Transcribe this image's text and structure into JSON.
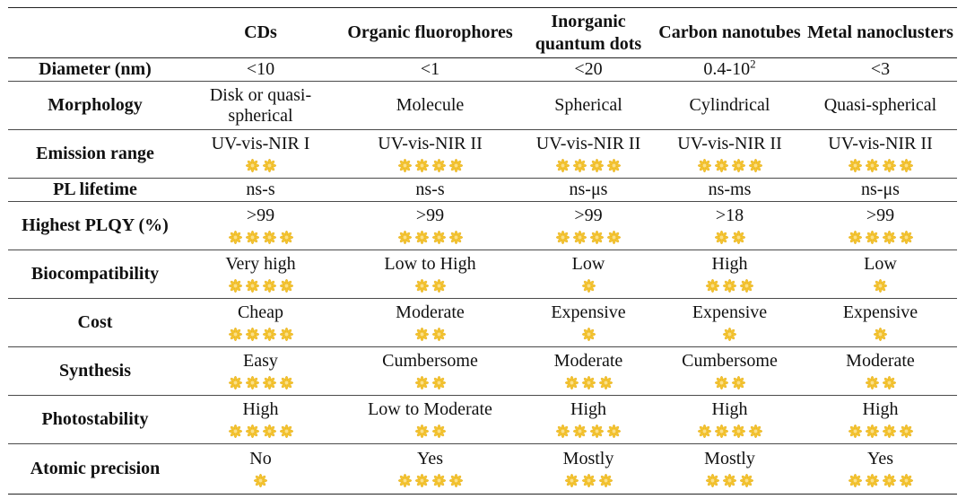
{
  "colors": {
    "star_fill": "#f4c430",
    "star_stroke": "#e0a81c",
    "rule": "#222222"
  },
  "table": {
    "headers": [
      "",
      "CDs",
      "Organic fluorophores",
      "Inorganic quantum dots",
      "Carbon nanotubes",
      "Metal nanoclusters"
    ],
    "rows": [
      {
        "label": "Diameter (nm)",
        "cells": [
          {
            "text": "<10"
          },
          {
            "text": "<1"
          },
          {
            "text": "<20"
          },
          {
            "text": "0.4-10",
            "sup": "2"
          },
          {
            "text": "<3"
          }
        ]
      },
      {
        "label": "Morphology",
        "cells": [
          {
            "text": "Disk or quasi-spherical"
          },
          {
            "text": "Molecule"
          },
          {
            "text": "Spherical"
          },
          {
            "text": "Cylindrical"
          },
          {
            "text": "Quasi-spherical"
          }
        ]
      },
      {
        "label": "Emission range",
        "cells": [
          {
            "text": "UV-vis-NIR I",
            "stars": 2
          },
          {
            "text": "UV-vis-NIR II",
            "stars": 4
          },
          {
            "text": "UV-vis-NIR II",
            "stars": 4
          },
          {
            "text": "UV-vis-NIR II",
            "stars": 4
          },
          {
            "text": "UV-vis-NIR II",
            "stars": 4
          }
        ]
      },
      {
        "label": "PL lifetime",
        "cells": [
          {
            "text": "ns-s"
          },
          {
            "text": "ns-s"
          },
          {
            "text": "ns-μs"
          },
          {
            "text": "ns-ms"
          },
          {
            "text": "ns-μs"
          }
        ]
      },
      {
        "label": "Highest PLQY (%)",
        "cells": [
          {
            "text": ">99",
            "stars": 4
          },
          {
            "text": ">99",
            "stars": 4
          },
          {
            "text": ">99",
            "stars": 4
          },
          {
            "text": ">18",
            "stars": 2
          },
          {
            "text": ">99",
            "stars": 4
          }
        ]
      },
      {
        "label": "Biocompatibility",
        "cells": [
          {
            "text": "Very high",
            "stars": 4
          },
          {
            "text": "Low to High",
            "stars": 2
          },
          {
            "text": "Low",
            "stars": 1
          },
          {
            "text": "High",
            "stars": 3
          },
          {
            "text": "Low",
            "stars": 1
          }
        ]
      },
      {
        "label": "Cost",
        "cells": [
          {
            "text": "Cheap",
            "stars": 4
          },
          {
            "text": "Moderate",
            "stars": 2
          },
          {
            "text": "Expensive",
            "stars": 1
          },
          {
            "text": "Expensive",
            "stars": 1
          },
          {
            "text": "Expensive",
            "stars": 1
          }
        ]
      },
      {
        "label": "Synthesis",
        "cells": [
          {
            "text": "Easy",
            "stars": 4
          },
          {
            "text": "Cumbersome",
            "stars": 2
          },
          {
            "text": "Moderate",
            "stars": 3
          },
          {
            "text": "Cumbersome",
            "stars": 2
          },
          {
            "text": "Moderate",
            "stars": 2
          }
        ]
      },
      {
        "label": "Photostability",
        "cells": [
          {
            "text": "High",
            "stars": 4
          },
          {
            "text": "Low to Moderate",
            "stars": 2
          },
          {
            "text": "High",
            "stars": 4
          },
          {
            "text": "High",
            "stars": 4
          },
          {
            "text": "High",
            "stars": 4
          }
        ]
      },
      {
        "label": "Atomic precision",
        "cells": [
          {
            "text": "No",
            "stars": 1
          },
          {
            "text": "Yes",
            "stars": 4
          },
          {
            "text": "Mostly",
            "stars": 3
          },
          {
            "text": "Mostly",
            "stars": 3
          },
          {
            "text": "Yes",
            "stars": 4
          }
        ]
      }
    ]
  }
}
